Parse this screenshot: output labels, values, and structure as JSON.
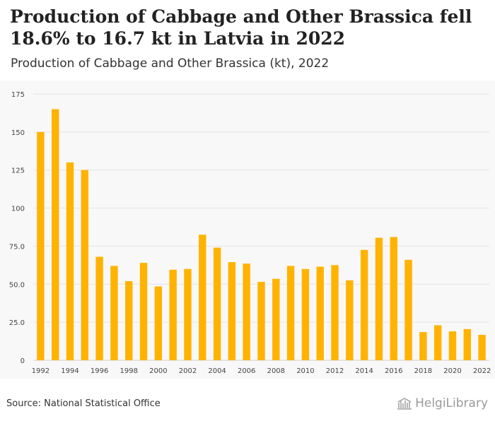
{
  "header": {
    "title": "Production of Cabbage and Other Brassica fell 18.6% to 16.7 kt in Latvia in 2022",
    "subtitle": "Production of Cabbage and Other Brassica (kt), 2022"
  },
  "footer": {
    "source": "Source: National Statistical Office",
    "brand": "HelgiLibrary"
  },
  "colors": {
    "bar": "#FFB300",
    "grid": "#e3e3e3",
    "axis_text": "#444444",
    "background": "#f8f8f8"
  },
  "chart_data": {
    "type": "bar",
    "categories": [
      "1992",
      "1993",
      "1994",
      "1995",
      "1996",
      "1997",
      "1998",
      "1999",
      "2000",
      "2001",
      "2002",
      "2003",
      "2004",
      "2005",
      "2006",
      "2007",
      "2008",
      "2009",
      "2010",
      "2011",
      "2012",
      "2013",
      "2014",
      "2015",
      "2016",
      "2017",
      "2018",
      "2019",
      "2020",
      "2021",
      "2022"
    ],
    "values": [
      150,
      165,
      130,
      125,
      68,
      62,
      52,
      64,
      48.5,
      59.5,
      60,
      82.5,
      74,
      64.5,
      63.5,
      51.5,
      53.5,
      62,
      60,
      61.5,
      62.5,
      52.5,
      72.5,
      80.5,
      81,
      66,
      18.5,
      23,
      19,
      20.5,
      16.7
    ],
    "x_tick_labels": [
      "1992",
      "1994",
      "1996",
      "1998",
      "2000",
      "2002",
      "2004",
      "2006",
      "2008",
      "2010",
      "2012",
      "2014",
      "2016",
      "2018",
      "2020",
      "2022"
    ],
    "y_ticks": [
      "0",
      "25.0",
      "50.0",
      "75.0",
      "100",
      "125",
      "150",
      "175"
    ],
    "ylim": [
      0,
      175
    ],
    "grid": true,
    "legend": "none"
  }
}
